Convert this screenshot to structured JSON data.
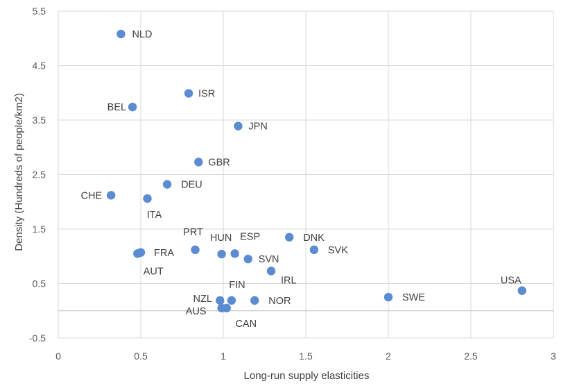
{
  "chart_data": {
    "type": "scatter",
    "xlabel": "Long-run supply elasticities",
    "ylabel": "Density (Hundreds of people/km2)",
    "xlim": [
      0,
      3
    ],
    "ylim": [
      -0.5,
      5.5
    ],
    "x_ticks": [
      "0",
      "0.5",
      "1",
      "1.5",
      "2",
      "2.5",
      "3"
    ],
    "y_ticks": [
      "-0.5",
      "0.5",
      "1.5",
      "2.5",
      "3.5",
      "4.5",
      "5.5"
    ],
    "grid": "vertical and horizontal major gridlines",
    "marker_color": "#5B8BD0",
    "points": [
      {
        "label": "NLD",
        "x": 0.38,
        "y": 5.08
      },
      {
        "label": "ISR",
        "x": 0.79,
        "y": 3.99
      },
      {
        "label": "BEL",
        "x": 0.45,
        "y": 3.74
      },
      {
        "label": "JPN",
        "x": 1.09,
        "y": 3.39
      },
      {
        "label": "GBR",
        "x": 0.85,
        "y": 2.73
      },
      {
        "label": "DEU",
        "x": 0.66,
        "y": 2.32
      },
      {
        "label": "CHE",
        "x": 0.32,
        "y": 2.12
      },
      {
        "label": "ITA",
        "x": 0.54,
        "y": 2.06
      },
      {
        "label": "DNK",
        "x": 1.4,
        "y": 1.35
      },
      {
        "label": "SVK",
        "x": 1.55,
        "y": 1.12
      },
      {
        "label": "PRT",
        "x": 0.83,
        "y": 1.12
      },
      {
        "label": "ESP",
        "x": 1.07,
        "y": 1.05
      },
      {
        "label": "HUN",
        "x": 0.99,
        "y": 1.04
      },
      {
        "label": "FRA",
        "x": 0.5,
        "y": 1.07
      },
      {
        "label": "AUT",
        "x": 0.48,
        "y": 1.05
      },
      {
        "label": "SVN",
        "x": 1.15,
        "y": 0.95
      },
      {
        "label": "IRL",
        "x": 1.29,
        "y": 0.73
      },
      {
        "label": "USA",
        "x": 2.81,
        "y": 0.37
      },
      {
        "label": "SWE",
        "x": 2.0,
        "y": 0.25
      },
      {
        "label": "FIN",
        "x": 1.05,
        "y": 0.19
      },
      {
        "label": "NZL",
        "x": 0.98,
        "y": 0.19
      },
      {
        "label": "NOR",
        "x": 1.19,
        "y": 0.19
      },
      {
        "label": "AUS",
        "x": 0.99,
        "y": 0.05
      },
      {
        "label": "CAN",
        "x": 1.02,
        "y": 0.05
      }
    ]
  }
}
